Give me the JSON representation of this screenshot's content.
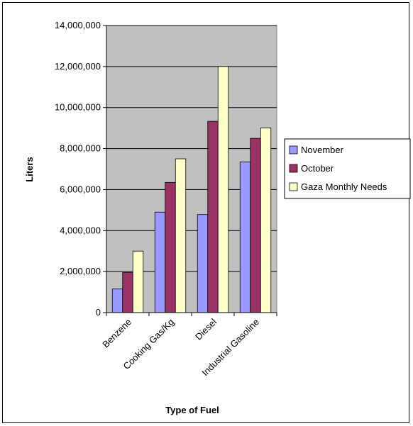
{
  "chart_data": {
    "type": "bar",
    "title": "",
    "xlabel": "Type of Fuel",
    "ylabel": "Liters",
    "categories": [
      "Benzene",
      "Cooking Gas/Kg",
      "Diesel",
      "Industrial Gasoline"
    ],
    "series": [
      {
        "name": "November",
        "color": "#9999ff",
        "values": [
          1150000,
          4900000,
          4780000,
          7350000
        ]
      },
      {
        "name": "October",
        "color": "#993366",
        "values": [
          1950000,
          6350000,
          9330000,
          8500000
        ]
      },
      {
        "name": "Gaza Monthly Needs",
        "color": "#ffffcc",
        "values": [
          3000000,
          7500000,
          12000000,
          9000000
        ]
      }
    ],
    "ylim": [
      0,
      14000000
    ],
    "yticks": [
      0,
      2000000,
      4000000,
      6000000,
      8000000,
      10000000,
      12000000,
      14000000
    ],
    "ytick_labels": [
      "0",
      "2,000,000",
      "4,000,000",
      "6,000,000",
      "8,000,000",
      "10,000,000",
      "12,000,000",
      "14,000,000"
    ],
    "grid": true,
    "plot_background": "#c0c0c0",
    "legend_position": "right"
  }
}
